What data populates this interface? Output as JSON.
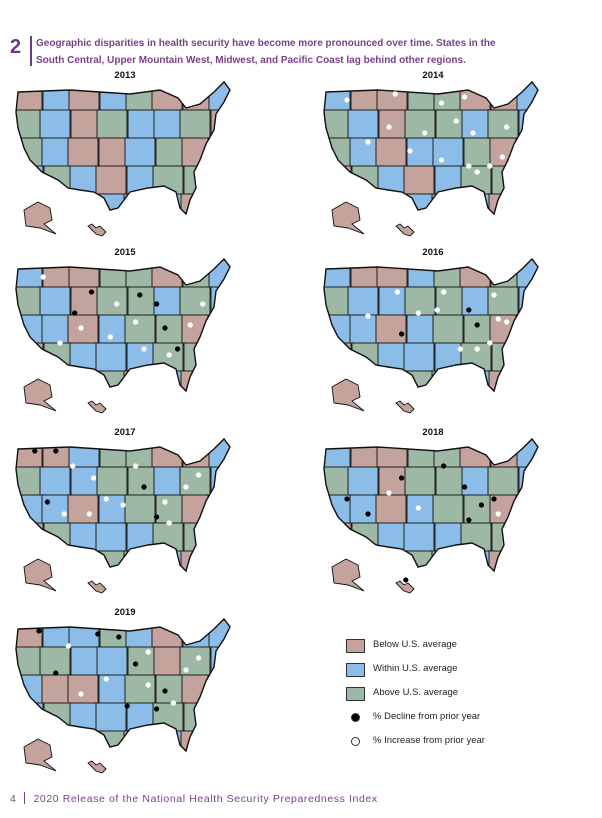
{
  "figure": {
    "number": "2",
    "caption_line1": "Geographic disparities in health security have become more pronounced over time. States in the",
    "caption_line2": "South Central, Upper Mountain West, Midwest, and Pacific Coast lag behind other regions."
  },
  "colors": {
    "below": "#c4a39d",
    "within": "#8bbde8",
    "above": "#9db8a5",
    "decline": "#000000",
    "increase": "#ffffff"
  },
  "maps": [
    {
      "year": "2013",
      "tint": "mixed1",
      "dots": []
    },
    {
      "year": "2014",
      "tint": "mixed2",
      "dots": [
        [
          0.1,
          0.12,
          "i"
        ],
        [
          0.33,
          0.08,
          "i"
        ],
        [
          0.55,
          0.14,
          "i"
        ],
        [
          0.62,
          0.26,
          "i"
        ],
        [
          0.7,
          0.34,
          "i"
        ],
        [
          0.47,
          0.34,
          "i"
        ],
        [
          0.55,
          0.52,
          "i"
        ],
        [
          0.68,
          0.56,
          "i"
        ],
        [
          0.72,
          0.6,
          "i"
        ],
        [
          0.78,
          0.56,
          "i"
        ],
        [
          0.86,
          0.3,
          "i"
        ],
        [
          0.4,
          0.46,
          "i"
        ],
        [
          0.3,
          0.3,
          "i"
        ],
        [
          0.2,
          0.4,
          "i"
        ],
        [
          0.66,
          0.1,
          "i"
        ],
        [
          0.84,
          0.5,
          "i"
        ]
      ]
    },
    {
      "year": "2015",
      "tint": "mixed3",
      "dots": [
        [
          0.12,
          0.12,
          "i"
        ],
        [
          0.27,
          0.36,
          "d"
        ],
        [
          0.35,
          0.22,
          "d"
        ],
        [
          0.47,
          0.3,
          "i"
        ],
        [
          0.58,
          0.24,
          "d"
        ],
        [
          0.66,
          0.3,
          "d"
        ],
        [
          0.7,
          0.46,
          "d"
        ],
        [
          0.76,
          0.6,
          "d"
        ],
        [
          0.72,
          0.64,
          "i"
        ],
        [
          0.6,
          0.6,
          "i"
        ],
        [
          0.82,
          0.44,
          "i"
        ],
        [
          0.44,
          0.52,
          "i"
        ],
        [
          0.2,
          0.56,
          "i"
        ],
        [
          0.3,
          0.46,
          "i"
        ],
        [
          0.56,
          0.42,
          "i"
        ],
        [
          0.88,
          0.3,
          "i"
        ]
      ]
    },
    {
      "year": "2016",
      "tint": "mixed4",
      "dots": [
        [
          0.2,
          0.38,
          "i"
        ],
        [
          0.34,
          0.22,
          "i"
        ],
        [
          0.53,
          0.34,
          "i"
        ],
        [
          0.68,
          0.34,
          "d"
        ],
        [
          0.72,
          0.44,
          "d"
        ],
        [
          0.82,
          0.4,
          "i"
        ],
        [
          0.86,
          0.42,
          "i"
        ],
        [
          0.64,
          0.6,
          "i"
        ],
        [
          0.72,
          0.6,
          "i"
        ],
        [
          0.78,
          0.56,
          "i"
        ],
        [
          0.36,
          0.5,
          "d"
        ],
        [
          0.44,
          0.36,
          "i"
        ],
        [
          0.8,
          0.24,
          "i"
        ],
        [
          0.56,
          0.22,
          "i"
        ]
      ]
    },
    {
      "year": "2017",
      "tint": "mixed5",
      "dots": [
        [
          0.08,
          0.08,
          "d"
        ],
        [
          0.18,
          0.08,
          "d"
        ],
        [
          0.26,
          0.18,
          "i"
        ],
        [
          0.36,
          0.26,
          "i"
        ],
        [
          0.42,
          0.4,
          "i"
        ],
        [
          0.5,
          0.44,
          "i"
        ],
        [
          0.6,
          0.32,
          "d"
        ],
        [
          0.7,
          0.42,
          "i"
        ],
        [
          0.72,
          0.56,
          "i"
        ],
        [
          0.66,
          0.52,
          "d"
        ],
        [
          0.34,
          0.5,
          "i"
        ],
        [
          0.22,
          0.5,
          "i"
        ],
        [
          0.14,
          0.42,
          "d"
        ],
        [
          0.56,
          0.18,
          "i"
        ],
        [
          0.8,
          0.32,
          "i"
        ],
        [
          0.86,
          0.24,
          "i"
        ]
      ]
    },
    {
      "year": "2018",
      "tint": "mixed6",
      "dots": [
        [
          0.1,
          0.4,
          "d"
        ],
        [
          0.2,
          0.5,
          "d"
        ],
        [
          0.36,
          0.26,
          "d"
        ],
        [
          0.56,
          0.18,
          "d"
        ],
        [
          0.66,
          0.32,
          "d"
        ],
        [
          0.74,
          0.44,
          "d"
        ],
        [
          0.8,
          0.4,
          "d"
        ],
        [
          0.82,
          0.5,
          "i"
        ],
        [
          0.68,
          0.54,
          "d"
        ],
        [
          0.44,
          0.46,
          "i"
        ],
        [
          0.3,
          0.36,
          "i"
        ],
        [
          0.38,
          0.94,
          "d"
        ]
      ]
    },
    {
      "year": "2019",
      "tint": "mixed7",
      "dots": [
        [
          0.1,
          0.08,
          "d"
        ],
        [
          0.18,
          0.36,
          "d"
        ],
        [
          0.24,
          0.18,
          "i"
        ],
        [
          0.38,
          0.1,
          "d"
        ],
        [
          0.48,
          0.12,
          "d"
        ],
        [
          0.56,
          0.3,
          "d"
        ],
        [
          0.62,
          0.44,
          "i"
        ],
        [
          0.7,
          0.48,
          "d"
        ],
        [
          0.74,
          0.56,
          "i"
        ],
        [
          0.66,
          0.6,
          "d"
        ],
        [
          0.52,
          0.58,
          "d"
        ],
        [
          0.42,
          0.4,
          "i"
        ],
        [
          0.3,
          0.5,
          "i"
        ],
        [
          0.8,
          0.34,
          "i"
        ],
        [
          0.86,
          0.26,
          "i"
        ],
        [
          0.62,
          0.22,
          "i"
        ]
      ]
    }
  ],
  "legend": {
    "below": "Below U.S. average",
    "within": "Within U.S. average",
    "above": "Above U.S. average",
    "decline": "% Decline from prior year",
    "increase": "% Increase from prior year"
  },
  "footer": {
    "page": "4",
    "text": "2020 Release of the National Health Security Preparedness Index"
  }
}
